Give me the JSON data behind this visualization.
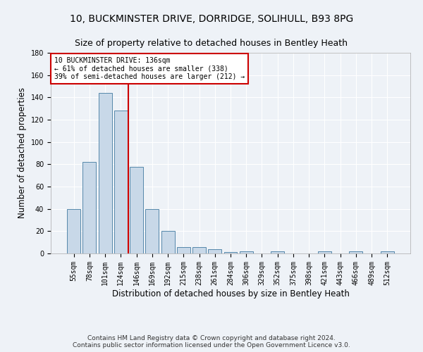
{
  "title1": "10, BUCKMINSTER DRIVE, DORRIDGE, SOLIHULL, B93 8PG",
  "title2": "Size of property relative to detached houses in Bentley Heath",
  "xlabel": "Distribution of detached houses by size in Bentley Heath",
  "ylabel": "Number of detached properties",
  "bar_labels": [
    "55sqm",
    "78sqm",
    "101sqm",
    "124sqm",
    "146sqm",
    "169sqm",
    "192sqm",
    "215sqm",
    "238sqm",
    "261sqm",
    "284sqm",
    "306sqm",
    "329sqm",
    "352sqm",
    "375sqm",
    "398sqm",
    "421sqm",
    "443sqm",
    "466sqm",
    "489sqm",
    "512sqm"
  ],
  "bar_values": [
    40,
    82,
    144,
    128,
    78,
    40,
    20,
    6,
    6,
    4,
    1,
    2,
    0,
    2,
    0,
    0,
    2,
    0,
    2,
    0,
    2
  ],
  "bar_color": "#c8d8e8",
  "bar_edge_color": "#5588aa",
  "vline_x": 3.5,
  "vline_color": "#cc0000",
  "annotation_text": "10 BUCKMINSTER DRIVE: 136sqm\n← 61% of detached houses are smaller (338)\n39% of semi-detached houses are larger (212) →",
  "annotation_box_color": "white",
  "annotation_box_edge_color": "#cc0000",
  "ylim": [
    0,
    180
  ],
  "yticks": [
    0,
    20,
    40,
    60,
    80,
    100,
    120,
    140,
    160,
    180
  ],
  "footer": "Contains HM Land Registry data © Crown copyright and database right 2024.\nContains public sector information licensed under the Open Government Licence v3.0.",
  "background_color": "#eef2f7",
  "grid_color": "white",
  "title_fontsize": 10,
  "subtitle_fontsize": 9,
  "axis_label_fontsize": 8.5,
  "tick_fontsize": 7,
  "footer_fontsize": 6.5
}
